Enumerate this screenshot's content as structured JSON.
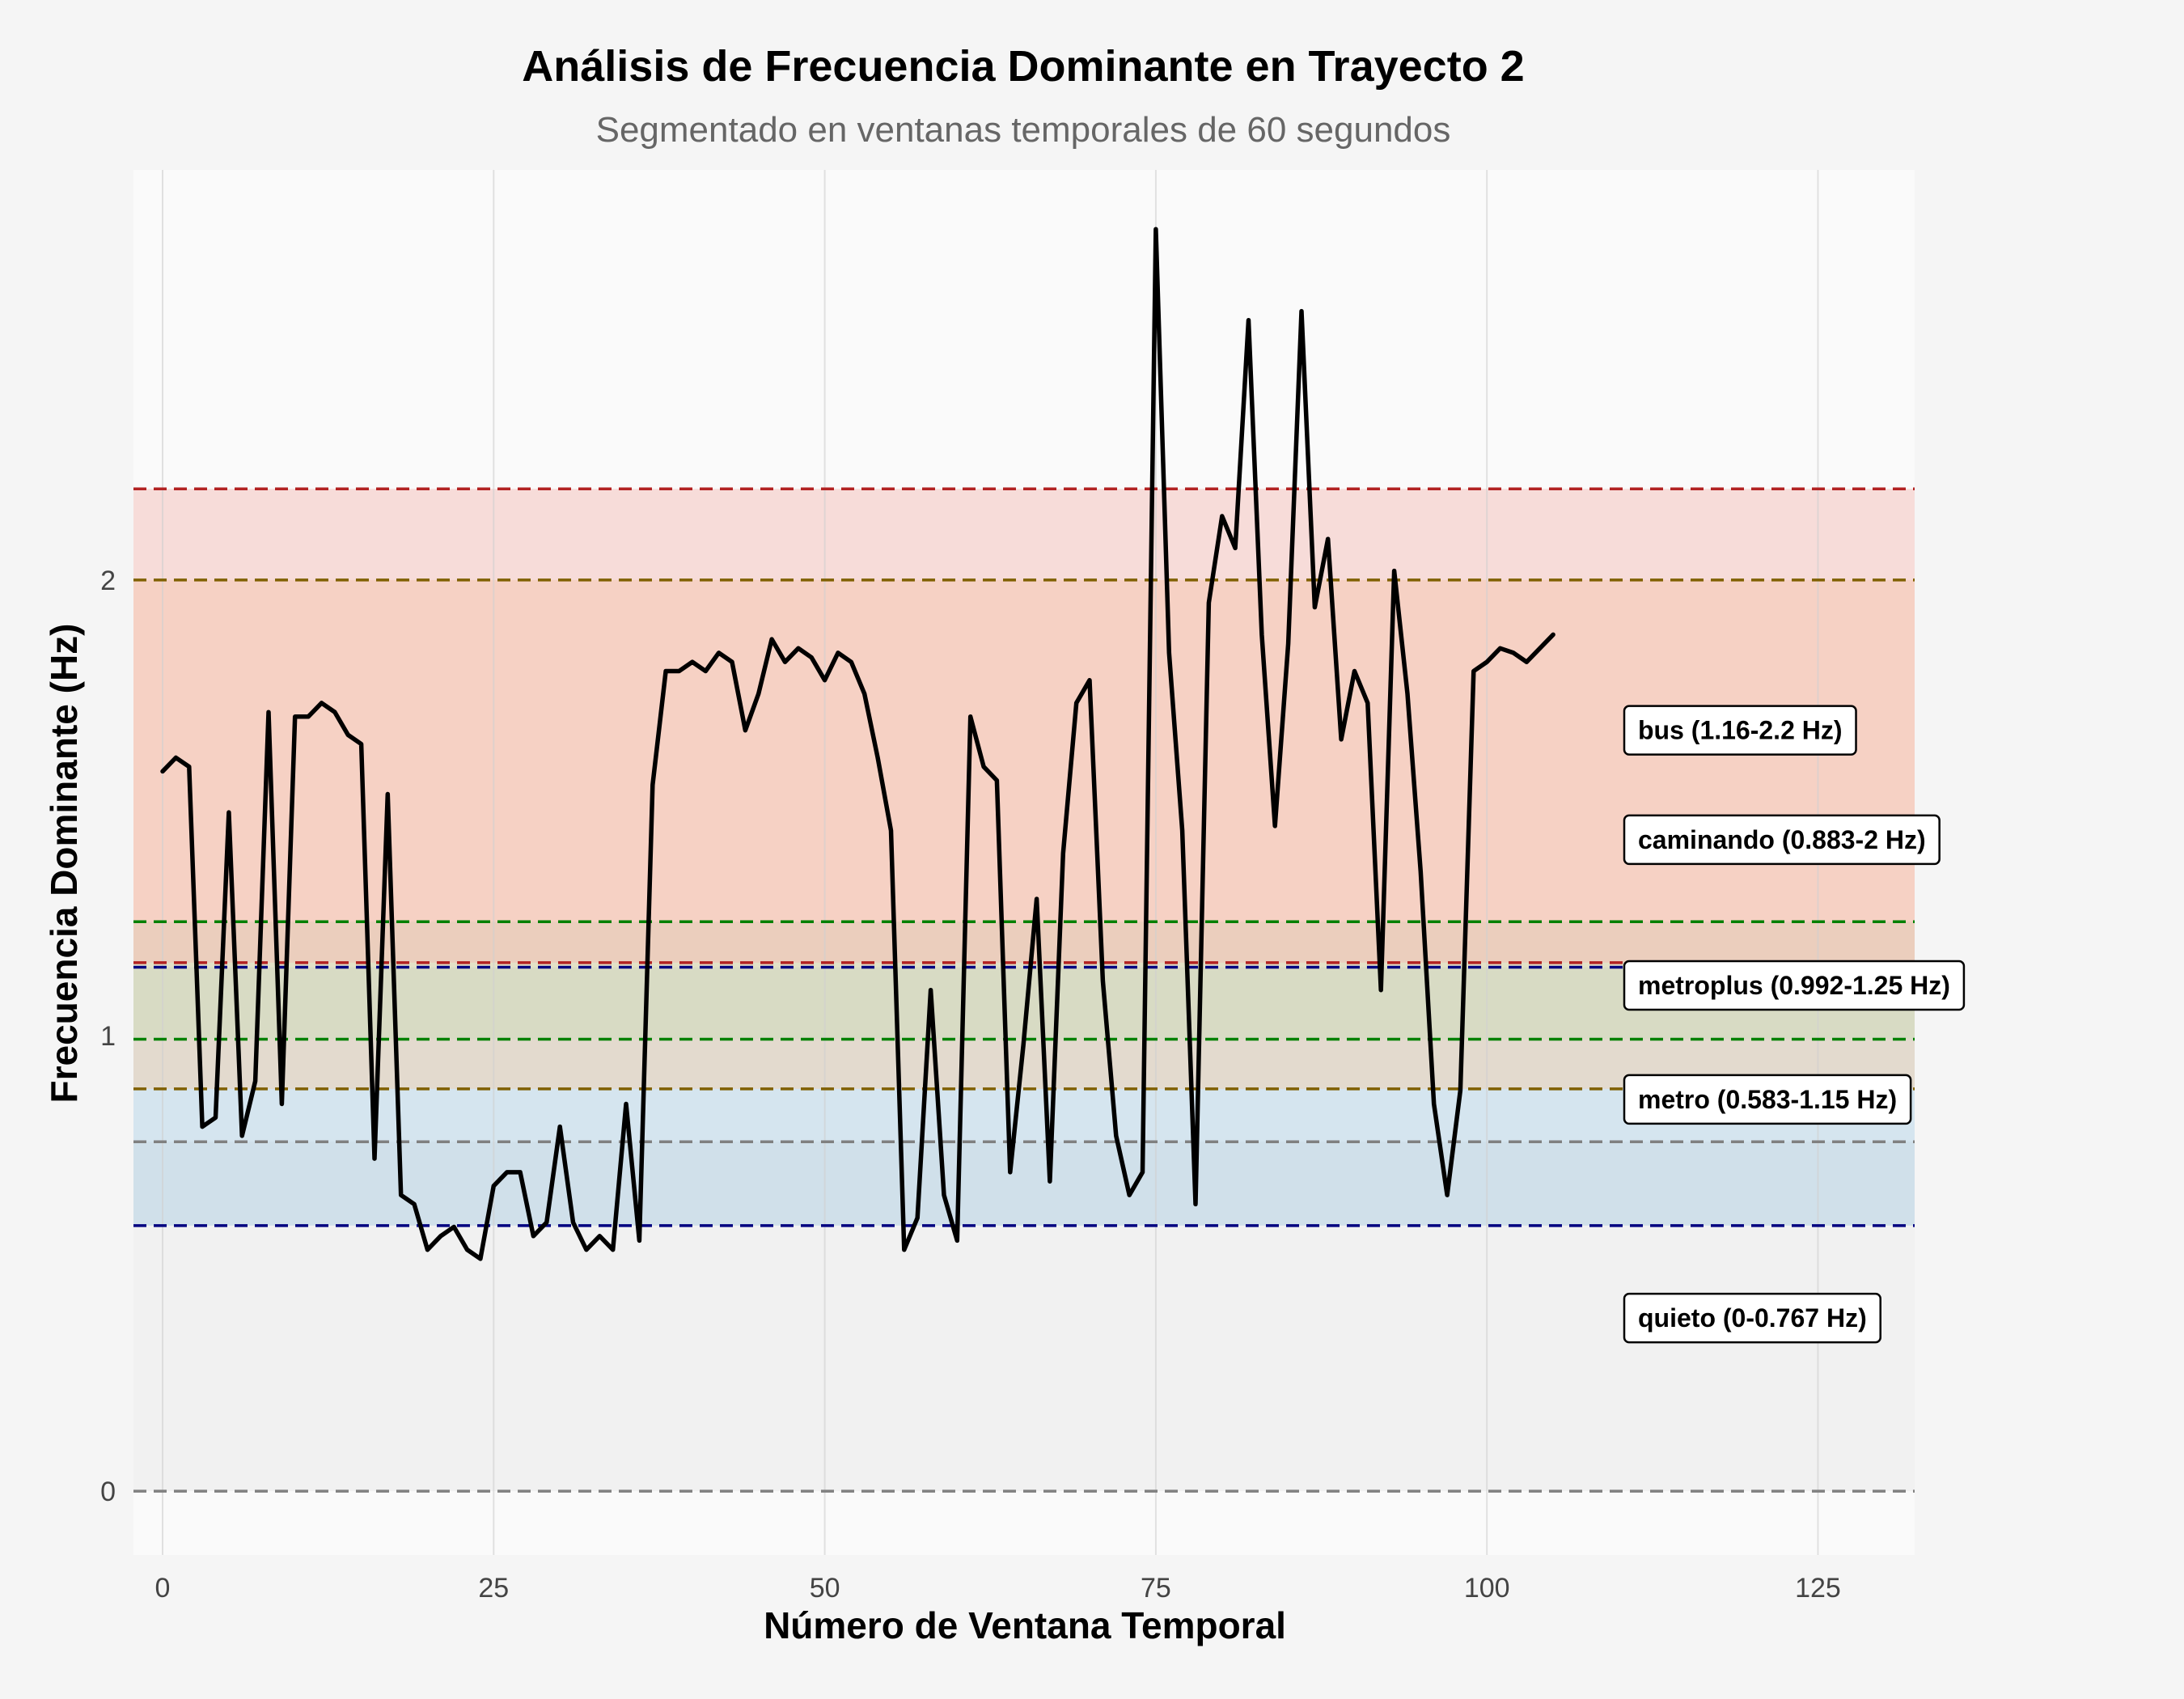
{
  "chart_data": {
    "type": "line",
    "title": "Análisis de Frecuencia Dominante en Trayecto 2",
    "subtitle": "Segmentado en ventanas temporales de 60 segundos",
    "xlabel": "Número de Ventana Temporal",
    "ylabel": "Frecuencia Dominante (Hz)",
    "xlim": [
      -2.2,
      132.3
    ],
    "ylim": [
      -0.14,
      2.9
    ],
    "xticks": [
      0,
      25,
      50,
      75,
      100,
      125
    ],
    "yticks": [
      0,
      1,
      2
    ],
    "grid": true,
    "series": [
      {
        "color": "#000000",
        "x": [
          0,
          1,
          2,
          3,
          4,
          5,
          6,
          7,
          8,
          9,
          10,
          11,
          12,
          13,
          14,
          15,
          16,
          17,
          18,
          19,
          20,
          21,
          22,
          23,
          24,
          25,
          26,
          27,
          28,
          29,
          30,
          31,
          32,
          33,
          34,
          35,
          36,
          37,
          38,
          39,
          40,
          41,
          42,
          43,
          44,
          45,
          46,
          47,
          48,
          49,
          50,
          51,
          52,
          53,
          54,
          55,
          56,
          57,
          58,
          59,
          60,
          61,
          62,
          63,
          64,
          65,
          66,
          67,
          68,
          69,
          70,
          71,
          72,
          73,
          74,
          75,
          76,
          77,
          78,
          79,
          80,
          81,
          82,
          83,
          84,
          85,
          86,
          87,
          88,
          89,
          90,
          91,
          92,
          93,
          94,
          95,
          96,
          97,
          98,
          99,
          100,
          101,
          102,
          103,
          104,
          105
        ],
        "y": [
          1.58,
          1.61,
          1.59,
          0.8,
          0.82,
          1.49,
          0.78,
          0.9,
          1.71,
          0.85,
          1.7,
          1.7,
          1.73,
          1.71,
          1.66,
          1.64,
          0.73,
          1.53,
          0.65,
          0.63,
          0.53,
          0.56,
          0.58,
          0.53,
          0.51,
          0.67,
          0.7,
          0.7,
          0.56,
          0.59,
          0.8,
          0.59,
          0.53,
          0.56,
          0.53,
          0.85,
          0.55,
          1.55,
          1.8,
          1.8,
          1.82,
          1.8,
          1.84,
          1.82,
          1.67,
          1.75,
          1.87,
          1.82,
          1.85,
          1.83,
          1.78,
          1.84,
          1.82,
          1.75,
          1.61,
          1.45,
          0.53,
          0.6,
          1.1,
          0.65,
          0.55,
          1.7,
          1.59,
          1.56,
          0.7,
          0.98,
          1.3,
          0.68,
          1.4,
          1.73,
          1.78,
          1.12,
          0.78,
          0.65,
          0.7,
          2.77,
          1.84,
          1.45,
          0.63,
          1.95,
          2.14,
          2.07,
          2.57,
          1.88,
          1.46,
          1.86,
          2.59,
          1.94,
          2.09,
          1.65,
          1.8,
          1.73,
          1.1,
          2.02,
          1.75,
          1.36,
          0.85,
          0.65,
          0.88,
          1.8,
          1.82,
          1.85,
          1.84,
          1.82,
          1.85,
          1.88
        ]
      }
    ],
    "bands": [
      {
        "label": "quieto (0-0.767 Hz)",
        "low": 0,
        "high": 0.767,
        "fill": "#e6e6e6",
        "line": "#808080",
        "label_y": 0.38
      },
      {
        "label": "metro (0.583-1.15 Hz)",
        "low": 0.583,
        "high": 1.15,
        "fill": "#a9cce3",
        "line": "#000080",
        "label_y": 0.86
      },
      {
        "label": "metroplus (0.992-1.25 Hz)",
        "low": 0.992,
        "high": 1.25,
        "fill": "#abebc6",
        "line": "#008000",
        "label_y": 1.11
      },
      {
        "label": "caminando (0.883-2 Hz)",
        "low": 0.883,
        "high": 2.0,
        "fill": "#f5cba7",
        "line": "#806000",
        "label_y": 1.43
      },
      {
        "label": "bus (1.16-2.2 Hz)",
        "low": 1.16,
        "high": 2.2,
        "fill": "#f5b7b1",
        "line": "#b22222",
        "label_y": 1.67
      }
    ]
  }
}
